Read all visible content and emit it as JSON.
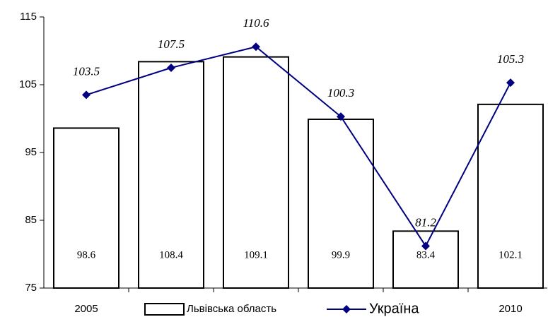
{
  "chart_data": {
    "type": "bar",
    "categories": [
      "2005",
      null,
      null,
      null,
      null,
      "2010"
    ],
    "series": [
      {
        "name": "Львівська область",
        "type": "bar",
        "color": "#ffffff",
        "values": [
          98.6,
          108.4,
          109.1,
          99.9,
          83.4,
          102.1
        ]
      },
      {
        "name": "Україна",
        "type": "line",
        "color": "#000080",
        "values": [
          103.5,
          107.5,
          110.6,
          100.3,
          81.2,
          105.3
        ]
      }
    ],
    "ylim": [
      75,
      115
    ],
    "yticks": [
      75,
      85,
      95,
      105,
      115
    ],
    "grid": false,
    "legend": "bottom"
  }
}
